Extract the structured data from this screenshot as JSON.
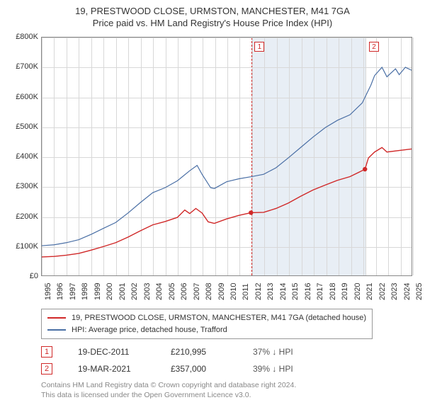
{
  "title": {
    "line1": "19, PRESTWOOD CLOSE, URMSTON, MANCHESTER, M41 7GA",
    "line2": "Price paid vs. HM Land Registry's House Price Index (HPI)"
  },
  "chart": {
    "type": "line",
    "background_color": "#ffffff",
    "grid_color": "#d8d8d8",
    "axis_color": "#888888",
    "y": {
      "min": 0,
      "max": 800000,
      "step": 100000,
      "labels": [
        "£0",
        "£100K",
        "£200K",
        "£300K",
        "£400K",
        "£500K",
        "£600K",
        "£700K",
        "£800K"
      ]
    },
    "x": {
      "min": 1995,
      "max": 2025,
      "labels": [
        "1995",
        "1996",
        "1997",
        "1998",
        "1999",
        "2000",
        "2001",
        "2002",
        "2003",
        "2004",
        "2005",
        "2006",
        "2007",
        "2008",
        "2009",
        "2010",
        "2011",
        "2012",
        "2013",
        "2014",
        "2015",
        "2016",
        "2017",
        "2018",
        "2019",
        "2020",
        "2021",
        "2022",
        "2023",
        "2024",
        "2025"
      ]
    },
    "shade_region": {
      "from": 2011.97,
      "to": 2021.22
    },
    "marker_flags": [
      {
        "id": "1",
        "at": 2011.97
      },
      {
        "id": "2",
        "at": 2021.22
      }
    ],
    "series": {
      "property": {
        "label": "19, PRESTWOOD CLOSE, URMSTON, MANCHESTER, M41 7GA (detached house)",
        "color": "#d02828",
        "width": 1.4,
        "points": [
          [
            1995,
            62000
          ],
          [
            1996,
            64000
          ],
          [
            1997,
            68000
          ],
          [
            1998,
            74000
          ],
          [
            1999,
            85000
          ],
          [
            2000,
            97000
          ],
          [
            2001,
            110000
          ],
          [
            2002,
            129000
          ],
          [
            2003,
            150000
          ],
          [
            2004,
            170000
          ],
          [
            2005,
            181000
          ],
          [
            2006,
            195000
          ],
          [
            2006.6,
            220000
          ],
          [
            2007,
            208000
          ],
          [
            2007.5,
            225000
          ],
          [
            2008,
            210000
          ],
          [
            2008.5,
            180000
          ],
          [
            2009,
            175000
          ],
          [
            2010,
            190000
          ],
          [
            2011,
            202000
          ],
          [
            2011.97,
            210995
          ],
          [
            2013,
            212000
          ],
          [
            2014,
            225000
          ],
          [
            2015,
            243000
          ],
          [
            2016,
            266000
          ],
          [
            2017,
            287000
          ],
          [
            2018,
            304000
          ],
          [
            2019,
            320000
          ],
          [
            2020,
            332000
          ],
          [
            2021.22,
            357000
          ],
          [
            2021.5,
            395000
          ],
          [
            2022,
            415000
          ],
          [
            2022.6,
            430000
          ],
          [
            2023,
            415000
          ],
          [
            2024,
            420000
          ],
          [
            2025,
            425000
          ]
        ],
        "dots": [
          {
            "x": 2011.97,
            "y": 210995
          },
          {
            "x": 2021.22,
            "y": 357000
          }
        ]
      },
      "hpi": {
        "label": "HPI: Average price, detached house, Trafford",
        "color": "#4a6fa5",
        "width": 1.2,
        "points": [
          [
            1995,
            100000
          ],
          [
            1996,
            103000
          ],
          [
            1997,
            110000
          ],
          [
            1998,
            120000
          ],
          [
            1999,
            138000
          ],
          [
            2000,
            158000
          ],
          [
            2001,
            178000
          ],
          [
            2002,
            210000
          ],
          [
            2003,
            245000
          ],
          [
            2004,
            278000
          ],
          [
            2005,
            295000
          ],
          [
            2006,
            318000
          ],
          [
            2007,
            352000
          ],
          [
            2007.6,
            370000
          ],
          [
            2008,
            340000
          ],
          [
            2008.7,
            295000
          ],
          [
            2009,
            292000
          ],
          [
            2010,
            315000
          ],
          [
            2011,
            325000
          ],
          [
            2012,
            332000
          ],
          [
            2013,
            340000
          ],
          [
            2014,
            362000
          ],
          [
            2015,
            395000
          ],
          [
            2016,
            430000
          ],
          [
            2017,
            465000
          ],
          [
            2018,
            497000
          ],
          [
            2019,
            522000
          ],
          [
            2020,
            540000
          ],
          [
            2021,
            580000
          ],
          [
            2021.7,
            640000
          ],
          [
            2022,
            672000
          ],
          [
            2022.6,
            700000
          ],
          [
            2023,
            668000
          ],
          [
            2023.7,
            695000
          ],
          [
            2024,
            675000
          ],
          [
            2024.5,
            700000
          ],
          [
            2025,
            690000
          ]
        ]
      }
    }
  },
  "markers_table": [
    {
      "id": "1",
      "date": "19-DEC-2011",
      "price": "£210,995",
      "rel": "37% ↓ HPI"
    },
    {
      "id": "2",
      "date": "19-MAR-2021",
      "price": "£357,000",
      "rel": "39% ↓ HPI"
    }
  ],
  "attribution": {
    "line1": "Contains HM Land Registry data © Crown copyright and database right 2024.",
    "line2": "This data is licensed under the Open Government Licence v3.0."
  }
}
